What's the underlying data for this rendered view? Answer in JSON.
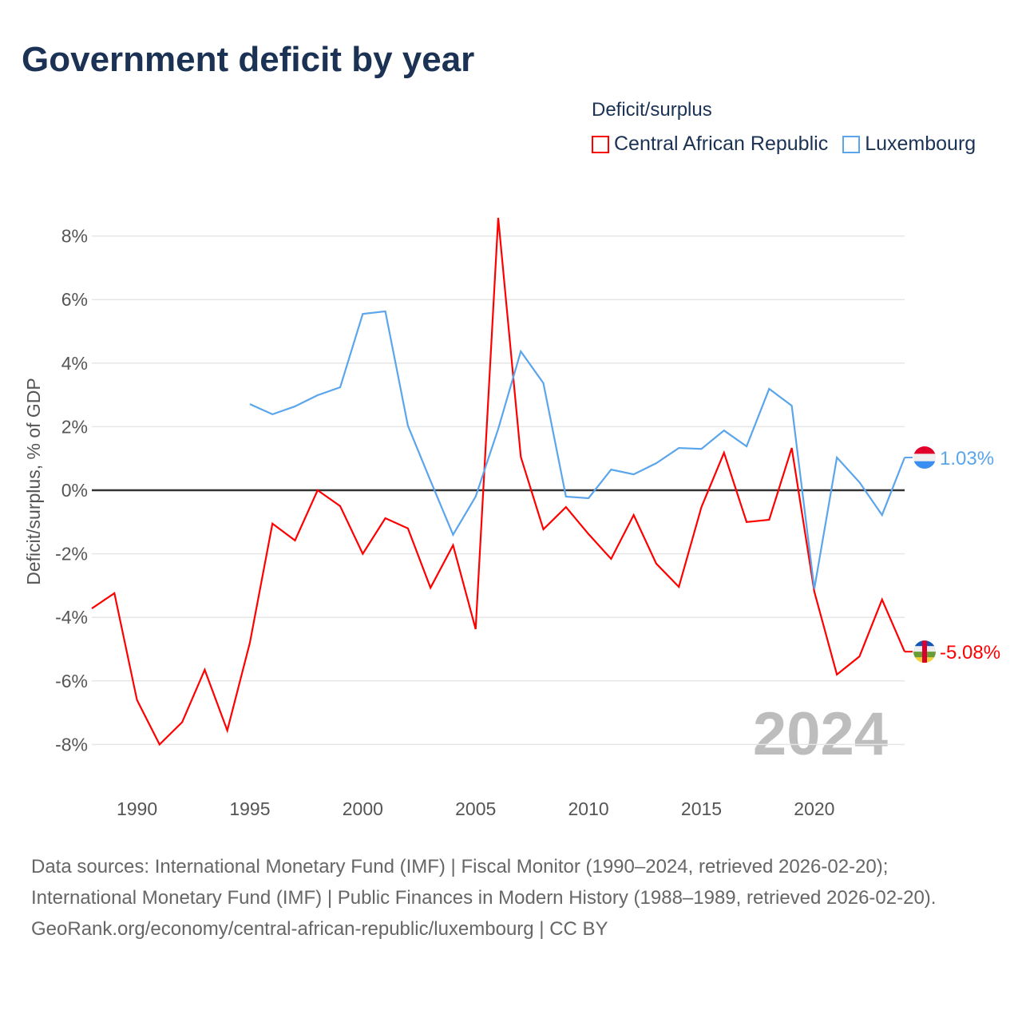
{
  "header": {
    "title": "Government deficit by year"
  },
  "legend": {
    "title": "Deficit/surplus"
  },
  "footer": {
    "source_line": "Data sources: International Monetary Fund (IMF) | Fiscal Monitor (1990–2024, retrieved 2026-02-20); International Monetary Fund (IMF) | Public Finances in Modern History (1988–1989, retrieved 2026-02-20).",
    "attribution": "GeoRank.org/economy/central-african-republic/luxembourg | CC BY"
  },
  "chart_data": {
    "type": "line",
    "title": "Government deficit by year",
    "xlabel": "",
    "ylabel": "Deficit/surplus, % of GDP",
    "xlim": [
      1988,
      2024
    ],
    "ylim": [
      -9,
      9
    ],
    "grid": true,
    "legend_placement": "top-right",
    "watermark_year": "2024",
    "x_ticks": [
      1990,
      1995,
      2000,
      2005,
      2010,
      2015,
      2020
    ],
    "x_tick_labels": [
      "1990",
      "1995",
      "2000",
      "2005",
      "2010",
      "2015",
      "2020"
    ],
    "y_ticks": [
      8,
      6,
      4,
      2,
      0,
      -2,
      -4,
      -6,
      -8
    ],
    "y_tick_labels": [
      "8%",
      "6%",
      "4%",
      "2%",
      "0%",
      "-2%",
      "-4%",
      "-6%",
      "-8%"
    ],
    "series": [
      {
        "name": "Central African Republic",
        "color": "#ff0000",
        "end_label": "-5.08%",
        "x": [
          1988,
          1989,
          1990,
          1991,
          1992,
          1993,
          1994,
          1995,
          1996,
          1997,
          1998,
          1999,
          2000,
          2001,
          2002,
          2003,
          2004,
          2005,
          2006,
          2007,
          2008,
          2009,
          2010,
          2011,
          2012,
          2013,
          2014,
          2015,
          2016,
          2017,
          2018,
          2019,
          2020,
          2021,
          2022,
          2023,
          2024
        ],
        "values": [
          -3.72,
          -3.24,
          -6.6,
          -8.0,
          -7.3,
          -5.65,
          -7.56,
          -4.8,
          -1.05,
          -1.58,
          0.0,
          -0.5,
          -2.0,
          -0.88,
          -1.2,
          -3.07,
          -1.73,
          -4.37,
          8.57,
          1.05,
          -1.23,
          -0.53,
          -1.38,
          -2.16,
          -0.78,
          -2.31,
          -3.04,
          -0.53,
          1.18,
          -1.0,
          -0.93,
          1.33,
          -3.19,
          -5.8,
          -5.23,
          -3.44,
          -5.08
        ]
      },
      {
        "name": "Luxembourg",
        "color": "#5aa5ec",
        "end_label": "1.03%",
        "x": [
          1995,
          1996,
          1997,
          1998,
          1999,
          2000,
          2001,
          2002,
          2003,
          2004,
          2005,
          2006,
          2007,
          2008,
          2009,
          2010,
          2011,
          2012,
          2013,
          2014,
          2015,
          2016,
          2017,
          2018,
          2019,
          2020,
          2021,
          2022,
          2023,
          2024
        ],
        "values": [
          2.71,
          2.39,
          2.64,
          2.99,
          3.24,
          5.55,
          5.63,
          2.03,
          0.3,
          -1.4,
          -0.2,
          1.93,
          4.37,
          3.37,
          -0.2,
          -0.25,
          0.65,
          0.5,
          0.85,
          1.33,
          1.3,
          1.88,
          1.38,
          3.19,
          2.66,
          -3.1,
          1.03,
          0.25,
          -0.78,
          1.03
        ]
      }
    ]
  }
}
